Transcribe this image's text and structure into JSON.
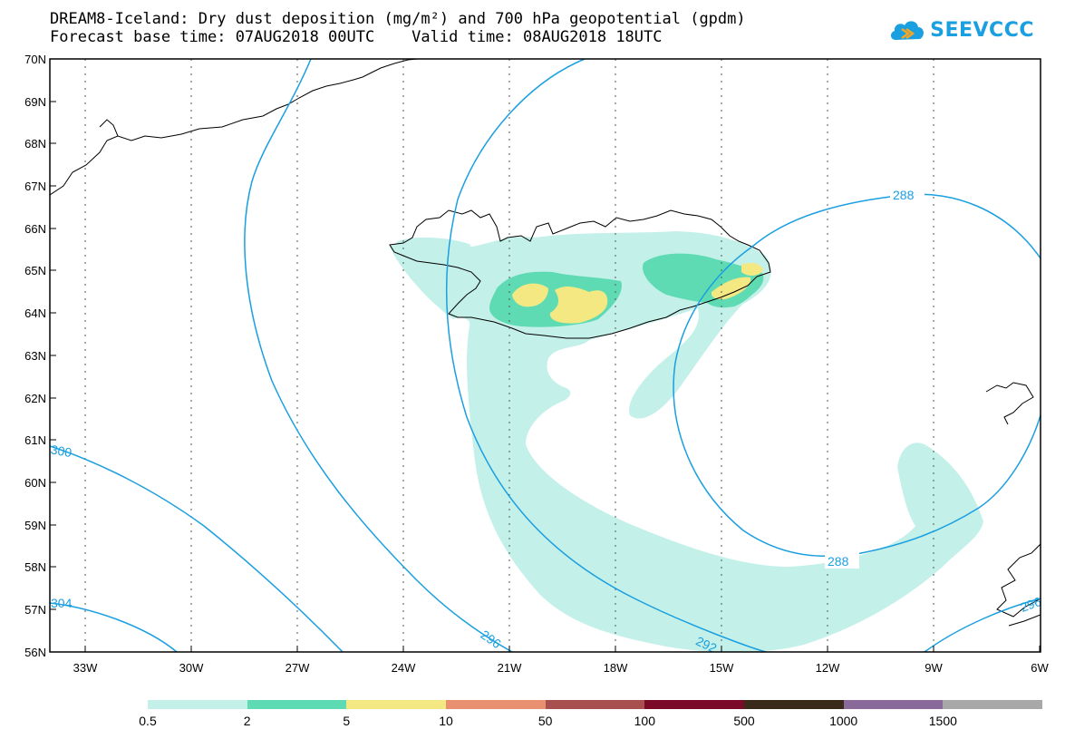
{
  "header": {
    "title_line_1": "DREAM8-Iceland: Dry dust deposition (mg/m²) and 700 hPa geopotential (gpdm)",
    "title_line_2": "Forecast base time: 07AUG2018 00UTC    Valid time: 08AUG2018 18UTC"
  },
  "logo": {
    "text": "SEEVCCC",
    "color": "#1a9fe0"
  },
  "map": {
    "lat_labels": [
      "70N",
      "69N",
      "68N",
      "67N",
      "66N",
      "65N",
      "64N",
      "63N",
      "62N",
      "61N",
      "60N",
      "59N",
      "58N",
      "57N",
      "56N"
    ],
    "lon_labels": [
      "33W",
      "30W",
      "27W",
      "24W",
      "21W",
      "18W",
      "15W",
      "12W",
      "9W",
      "6W"
    ],
    "contour_labels": [
      "288",
      "288",
      "292",
      "296",
      "300",
      "304",
      "296"
    ],
    "contour_color": "#1a9fe0"
  },
  "legend": {
    "colors": [
      "#c4f0ea",
      "#5fdbb4",
      "#f4e882",
      "#e89070",
      "#a85050",
      "#7a0a28",
      "#3a2a1a",
      "#8a6a9a",
      "#a8a8a8"
    ],
    "labels": [
      "0.5",
      "2",
      "5",
      "10",
      "50",
      "100",
      "500",
      "1000",
      "1500"
    ]
  }
}
